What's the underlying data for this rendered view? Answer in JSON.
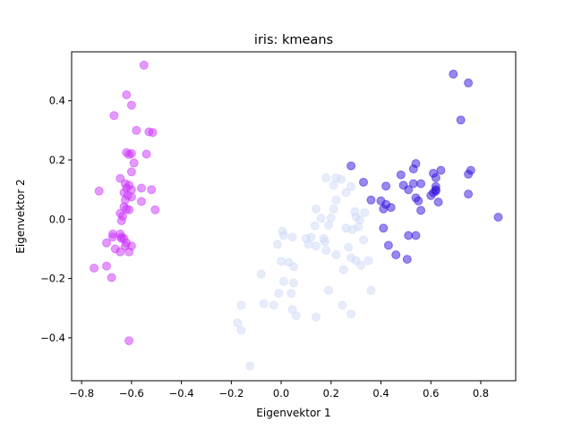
{
  "chart_data": {
    "type": "scatter",
    "title": "iris: kmeans",
    "xlabel": "Eigenvektor 1",
    "ylabel": "Eigenvektor 2",
    "xlim": [
      -0.84,
      0.94
    ],
    "ylim": [
      -0.545,
      0.565
    ],
    "xticks": [
      -0.8,
      -0.6,
      -0.4,
      -0.2,
      0.0,
      0.2,
      0.4,
      0.6,
      0.8
    ],
    "yticks": [
      -0.4,
      -0.2,
      0.0,
      0.2,
      0.4
    ],
    "xtick_labels": [
      "−0.8",
      "−0.6",
      "−0.4",
      "−0.2",
      "0.0",
      "0.2",
      "0.4",
      "0.6",
      "0.8"
    ],
    "ytick_labels": [
      "−0.4",
      "−0.2",
      "0.0",
      "0.2",
      "0.4"
    ],
    "grid": false,
    "series": [
      {
        "color": "#cc33ff",
        "opacity": 0.5,
        "points": [
          [
            -0.55,
            0.52
          ],
          [
            -0.62,
            0.42
          ],
          [
            -0.6,
            0.385
          ],
          [
            -0.67,
            0.35
          ],
          [
            -0.58,
            0.3
          ],
          [
            -0.53,
            0.295
          ],
          [
            -0.515,
            0.293
          ],
          [
            -0.62,
            0.225
          ],
          [
            -0.6,
            0.222
          ],
          [
            -0.61,
            0.218
          ],
          [
            -0.54,
            0.22
          ],
          [
            -0.59,
            0.19
          ],
          [
            -0.6,
            0.16
          ],
          [
            -0.645,
            0.138
          ],
          [
            -0.625,
            0.12
          ],
          [
            -0.61,
            0.115
          ],
          [
            -0.6,
            0.1
          ],
          [
            -0.56,
            0.105
          ],
          [
            -0.52,
            0.1
          ],
          [
            -0.73,
            0.095
          ],
          [
            -0.62,
            0.105
          ],
          [
            -0.63,
            0.09
          ],
          [
            -0.615,
            0.08
          ],
          [
            -0.625,
            0.065
          ],
          [
            -0.6,
            0.075
          ],
          [
            -0.56,
            0.06
          ],
          [
            -0.63,
            0.042
          ],
          [
            -0.62,
            0.035
          ],
          [
            -0.61,
            0.032
          ],
          [
            -0.505,
            0.032
          ],
          [
            -0.645,
            0.02
          ],
          [
            -0.635,
            0.01
          ],
          [
            -0.64,
            -0.005
          ],
          [
            -0.675,
            -0.05
          ],
          [
            -0.675,
            -0.06
          ],
          [
            -0.645,
            -0.05
          ],
          [
            -0.64,
            -0.06
          ],
          [
            -0.63,
            -0.065
          ],
          [
            -0.62,
            -0.08
          ],
          [
            -0.7,
            -0.08
          ],
          [
            -0.6,
            -0.09
          ],
          [
            -0.625,
            -0.09
          ],
          [
            -0.665,
            -0.1
          ],
          [
            -0.645,
            -0.11
          ],
          [
            -0.61,
            -0.11
          ],
          [
            -0.75,
            -0.165
          ],
          [
            -0.7,
            -0.158
          ],
          [
            -0.68,
            -0.197
          ],
          [
            -0.61,
            -0.41
          ],
          [
            -0.64,
            -0.065
          ]
        ]
      },
      {
        "color": "#3311dd",
        "opacity": 0.5,
        "points": [
          [
            0.69,
            0.49
          ],
          [
            0.75,
            0.46
          ],
          [
            0.72,
            0.335
          ],
          [
            0.54,
            0.188
          ],
          [
            0.53,
            0.17
          ],
          [
            0.64,
            0.165
          ],
          [
            0.76,
            0.165
          ],
          [
            0.28,
            0.18
          ],
          [
            0.61,
            0.155
          ],
          [
            0.75,
            0.152
          ],
          [
            0.48,
            0.15
          ],
          [
            0.62,
            0.14
          ],
          [
            0.33,
            0.125
          ],
          [
            0.53,
            0.12
          ],
          [
            0.56,
            0.12
          ],
          [
            0.49,
            0.115
          ],
          [
            0.42,
            0.112
          ],
          [
            0.62,
            0.11
          ],
          [
            0.62,
            0.1
          ],
          [
            0.51,
            0.1
          ],
          [
            0.62,
            0.095
          ],
          [
            0.61,
            0.09
          ],
          [
            0.75,
            0.085
          ],
          [
            0.6,
            0.08
          ],
          [
            0.54,
            0.072
          ],
          [
            0.36,
            0.065
          ],
          [
            0.55,
            0.062
          ],
          [
            0.4,
            0.062
          ],
          [
            0.63,
            0.058
          ],
          [
            0.42,
            0.05
          ],
          [
            0.44,
            0.04
          ],
          [
            0.41,
            0.035
          ],
          [
            0.56,
            0.03
          ],
          [
            0.87,
            0.007
          ],
          [
            0.41,
            -0.03
          ],
          [
            0.51,
            -0.055
          ],
          [
            0.54,
            -0.055
          ],
          [
            0.43,
            -0.088
          ],
          [
            0.46,
            -0.12
          ],
          [
            0.505,
            -0.135
          ]
        ]
      },
      {
        "color": "#cfd9f7",
        "opacity": 0.5,
        "points": [
          [
            0.22,
            0.14
          ],
          [
            0.18,
            0.14
          ],
          [
            0.24,
            0.135
          ],
          [
            0.21,
            0.115
          ],
          [
            0.28,
            0.11
          ],
          [
            0.26,
            0.09
          ],
          [
            0.22,
            0.065
          ],
          [
            0.21,
            0.035
          ],
          [
            0.14,
            0.035
          ],
          [
            0.295,
            0.025
          ],
          [
            0.335,
            0.022
          ],
          [
            0.3,
            0.008
          ],
          [
            0.2,
            0.005
          ],
          [
            0.16,
            0.003
          ],
          [
            0.315,
            -0.002
          ],
          [
            0.19,
            -0.02
          ],
          [
            0.135,
            -0.022
          ],
          [
            0.26,
            -0.03
          ],
          [
            0.31,
            -0.025
          ],
          [
            0.285,
            -0.035
          ],
          [
            0.005,
            -0.04
          ],
          [
            0.01,
            -0.055
          ],
          [
            0.045,
            -0.06
          ],
          [
            0.12,
            -0.06
          ],
          [
            0.1,
            -0.065
          ],
          [
            0.17,
            -0.065
          ],
          [
            0.33,
            -0.07
          ],
          [
            0.175,
            -0.075
          ],
          [
            -0.015,
            -0.085
          ],
          [
            0.11,
            -0.085
          ],
          [
            0.14,
            -0.09
          ],
          [
            0.27,
            -0.095
          ],
          [
            0.18,
            -0.105
          ],
          [
            0.22,
            -0.12
          ],
          [
            0.3,
            -0.14
          ],
          [
            0.28,
            -0.13
          ],
          [
            0.35,
            -0.14
          ],
          [
            0.0,
            -0.142
          ],
          [
            0.03,
            -0.145
          ],
          [
            0.32,
            -0.155
          ],
          [
            -0.08,
            -0.185
          ],
          [
            0.05,
            -0.16
          ],
          [
            0.25,
            -0.17
          ],
          [
            0.01,
            -0.21
          ],
          [
            0.05,
            -0.215
          ],
          [
            0.04,
            -0.25
          ],
          [
            -0.01,
            -0.25
          ],
          [
            0.19,
            -0.24
          ],
          [
            0.36,
            -0.24
          ],
          [
            -0.16,
            -0.29
          ],
          [
            -0.07,
            -0.285
          ],
          [
            -0.03,
            -0.29
          ],
          [
            0.045,
            -0.305
          ],
          [
            0.245,
            -0.29
          ],
          [
            0.06,
            -0.325
          ],
          [
            0.14,
            -0.33
          ],
          [
            0.28,
            -0.32
          ],
          [
            -0.175,
            -0.35
          ],
          [
            -0.16,
            -0.375
          ],
          [
            -0.125,
            -0.495
          ]
        ]
      }
    ]
  }
}
